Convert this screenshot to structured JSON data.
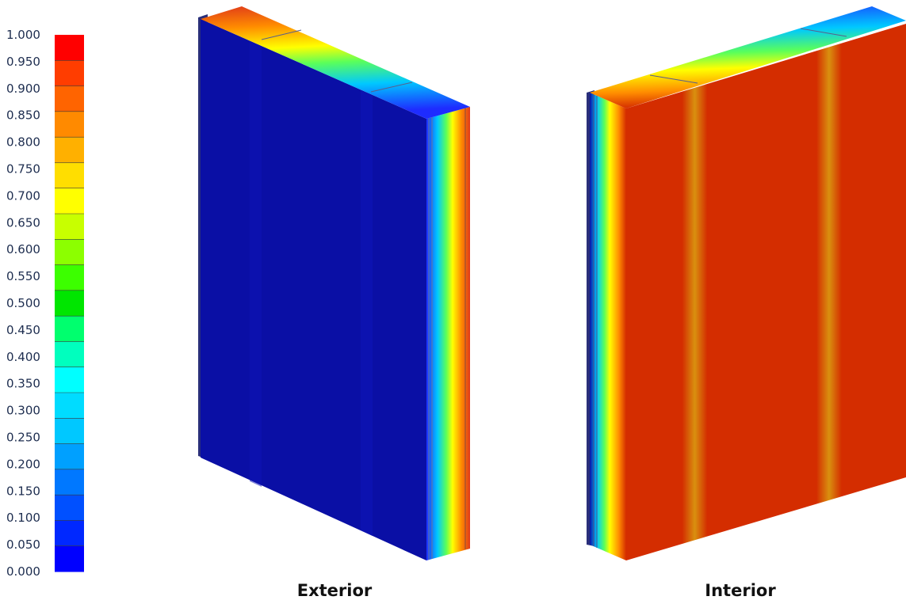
{
  "legend": {
    "ticks": [
      "1.000",
      "0.950",
      "0.900",
      "0.850",
      "0.800",
      "0.750",
      "0.700",
      "0.650",
      "0.600",
      "0.550",
      "0.500",
      "0.450",
      "0.400",
      "0.350",
      "0.300",
      "0.250",
      "0.200",
      "0.150",
      "0.100",
      "0.050",
      "0.000"
    ],
    "colors_top_to_bottom": [
      "#ff0000",
      "#ff3d00",
      "#ff6400",
      "#ff8a00",
      "#ffb000",
      "#ffde00",
      "#ffff00",
      "#c8ff00",
      "#8cff00",
      "#3cff00",
      "#00e600",
      "#00ff6e",
      "#00ffbe",
      "#00ffff",
      "#00dcff",
      "#00c8ff",
      "#00a0ff",
      "#0078ff",
      "#0050ff",
      "#0028ff",
      "#0000ff"
    ]
  },
  "views": {
    "exterior": {
      "caption": "Exterior",
      "face_color": "#0a0fa5",
      "top_gradient": [
        "#1e2cff",
        "#00c8ff",
        "#5aff5a",
        "#ffff00",
        "#ff8c00",
        "#e03a1a"
      ]
    },
    "interior": {
      "caption": "Interior",
      "face_color": "#d42d00",
      "stripe_color": "#d9900f",
      "side_gradient": [
        "#0a0fa5",
        "#00c8ff",
        "#5aff5a",
        "#ffff00",
        "#ff8c00",
        "#d42d00"
      ]
    }
  }
}
